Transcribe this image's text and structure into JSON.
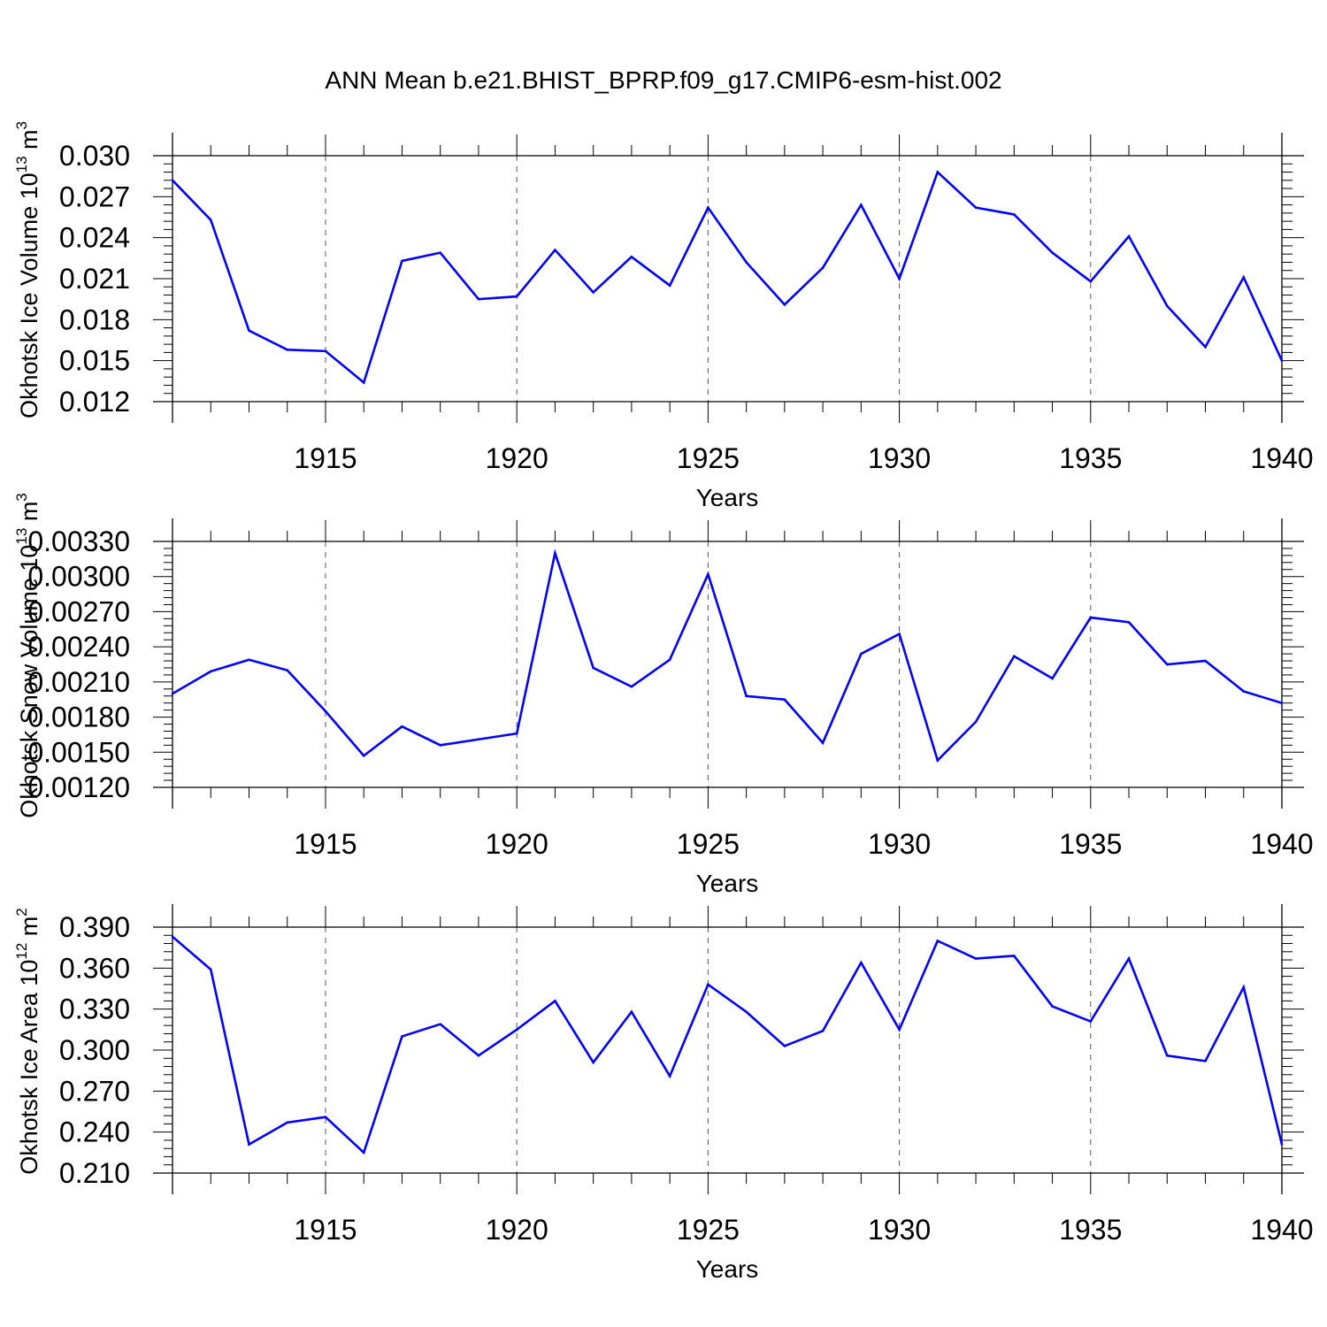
{
  "title": "ANN Mean b.e21.BHIST_BPRP.f09_g17.CMIP6-esm-hist.002",
  "chart_data": [
    {
      "type": "line",
      "title": "ANN Mean b.e21.BHIST_BPRP.f09_g17.CMIP6-esm-hist.002",
      "xlabel": "Years",
      "ylabel": "Okhotsk Ice Volume 10",
      "ylabel_sup": "13",
      "ylabel_unit": "m",
      "ylabel_unit_sup": "3",
      "xlim": [
        1911,
        1940
      ],
      "ylim": [
        0.012,
        0.03
      ],
      "grid": "dashed vertical lines at labeled years",
      "x_ticks": [
        1915,
        1920,
        1925,
        1930,
        1935,
        1940
      ],
      "x_tick_labels": [
        "1915",
        "1920",
        "1925",
        "1930",
        "1935",
        "1940"
      ],
      "y_ticks": [
        0.012,
        0.015,
        0.018,
        0.021,
        0.024,
        0.027,
        0.03
      ],
      "y_tick_labels": [
        "0.012",
        "0.015",
        "0.018",
        "0.021",
        "0.024",
        "0.027",
        "0.030"
      ],
      "series": [
        {
          "name": "Okhotsk Ice Volume",
          "color": "#0000ff",
          "x": [
            1911,
            1912,
            1913,
            1914,
            1915,
            1916,
            1917,
            1918,
            1919,
            1920,
            1921,
            1922,
            1923,
            1924,
            1925,
            1926,
            1927,
            1928,
            1929,
            1930,
            1931,
            1932,
            1933,
            1934,
            1935,
            1936,
            1937,
            1938,
            1939,
            1940
          ],
          "values": [
            0.0282,
            0.0253,
            0.0172,
            0.0158,
            0.0157,
            0.0134,
            0.0223,
            0.0229,
            0.0195,
            0.0197,
            0.0231,
            0.02,
            0.0226,
            0.0205,
            0.0262,
            0.0222,
            0.0191,
            0.0218,
            0.0264,
            0.021,
            0.0288,
            0.0262,
            0.0257,
            0.0229,
            0.0208,
            0.0241,
            0.019,
            0.016,
            0.0211,
            0.015
          ]
        }
      ]
    },
    {
      "type": "line",
      "xlabel": "Years",
      "ylabel": "Okhotsk Snow Volume 10",
      "ylabel_sup": "13",
      "ylabel_unit": "m",
      "ylabel_unit_sup": "3",
      "xlim": [
        1911,
        1940
      ],
      "ylim": [
        0.0012,
        0.0033
      ],
      "grid": "dashed vertical lines at labeled years",
      "x_ticks": [
        1915,
        1920,
        1925,
        1930,
        1935,
        1940
      ],
      "x_tick_labels": [
        "1915",
        "1920",
        "1925",
        "1930",
        "1935",
        "1940"
      ],
      "y_ticks": [
        0.0012,
        0.0015,
        0.0018,
        0.0021,
        0.0024,
        0.0027,
        0.003,
        0.0033
      ],
      "y_tick_labels": [
        "0.00120",
        "0.00150",
        "0.00180",
        "0.00210",
        "0.00240",
        "0.00270",
        "0.00300",
        "0.00330"
      ],
      "series": [
        {
          "name": "Okhotsk Snow Volume",
          "color": "#0000ff",
          "x": [
            1911,
            1912,
            1913,
            1914,
            1915,
            1916,
            1917,
            1918,
            1919,
            1920,
            1921,
            1922,
            1923,
            1924,
            1925,
            1926,
            1927,
            1928,
            1929,
            1930,
            1931,
            1932,
            1933,
            1934,
            1935,
            1936,
            1937,
            1938,
            1939,
            1940
          ],
          "values": [
            0.002,
            0.00219,
            0.00229,
            0.0022,
            0.00185,
            0.00147,
            0.00172,
            0.00156,
            0.00161,
            0.00166,
            0.0032,
            0.00222,
            0.00206,
            0.00229,
            0.00302,
            0.00198,
            0.00195,
            0.00158,
            0.00234,
            0.00251,
            0.00143,
            0.00176,
            0.00232,
            0.00213,
            0.00265,
            0.00261,
            0.00225,
            0.00228,
            0.00202,
            0.00192
          ]
        }
      ]
    },
    {
      "type": "line",
      "xlabel": "Years",
      "ylabel": "Okhotsk Ice Area 10",
      "ylabel_sup": "12",
      "ylabel_unit": "m",
      "ylabel_unit_sup": "2",
      "xlim": [
        1911,
        1940
      ],
      "ylim": [
        0.21,
        0.39
      ],
      "grid": "dashed vertical lines at labeled years",
      "x_ticks": [
        1915,
        1920,
        1925,
        1930,
        1935,
        1940
      ],
      "x_tick_labels": [
        "1915",
        "1920",
        "1925",
        "1930",
        "1935",
        "1940"
      ],
      "y_ticks": [
        0.21,
        0.24,
        0.27,
        0.3,
        0.33,
        0.36,
        0.39
      ],
      "y_tick_labels": [
        "0.210",
        "0.240",
        "0.270",
        "0.300",
        "0.330",
        "0.360",
        "0.390"
      ],
      "series": [
        {
          "name": "Okhotsk Ice Area",
          "color": "#0000ff",
          "x": [
            1911,
            1912,
            1913,
            1914,
            1915,
            1916,
            1917,
            1918,
            1919,
            1920,
            1921,
            1922,
            1923,
            1924,
            1925,
            1926,
            1927,
            1928,
            1929,
            1930,
            1931,
            1932,
            1933,
            1934,
            1935,
            1936,
            1937,
            1938,
            1939,
            1940
          ],
          "values": [
            0.383,
            0.359,
            0.231,
            0.247,
            0.251,
            0.225,
            0.31,
            0.319,
            0.296,
            0.315,
            0.336,
            0.291,
            0.328,
            0.281,
            0.348,
            0.328,
            0.303,
            0.314,
            0.364,
            0.315,
            0.38,
            0.367,
            0.369,
            0.332,
            0.321,
            0.367,
            0.296,
            0.292,
            0.346,
            0.231
          ]
        }
      ]
    }
  ]
}
